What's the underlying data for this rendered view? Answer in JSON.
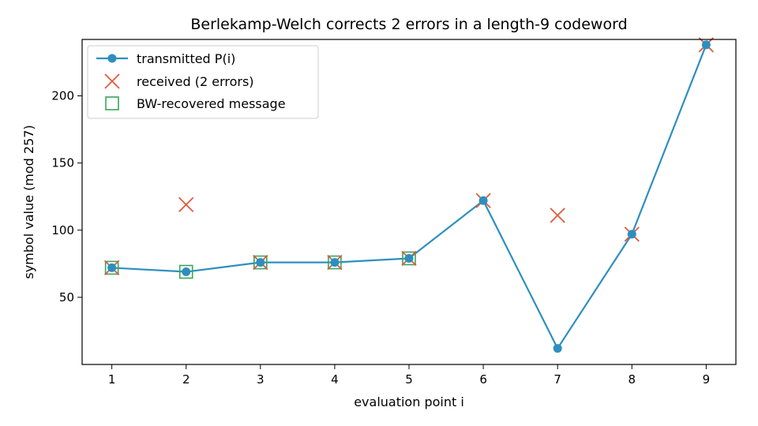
{
  "chart_data": {
    "type": "line",
    "title": "Berlekamp-Welch corrects 2 errors in a length-9 codeword",
    "xlabel": "evaluation point i",
    "ylabel": "symbol value (mod 257)",
    "xlim": [
      0.6,
      9.4
    ],
    "ylim": [
      0,
      242
    ],
    "xticks": [
      1,
      2,
      3,
      4,
      5,
      6,
      7,
      8,
      9
    ],
    "yticks": [
      50,
      100,
      150,
      200
    ],
    "grid": false,
    "legend_position": "top-left",
    "series": [
      {
        "name": "transmitted P(i)",
        "style": "line-with-circle-markers",
        "color": "#2e8fbf",
        "x": [
          1,
          2,
          3,
          4,
          5,
          6,
          7,
          8,
          9
        ],
        "y": [
          72,
          69,
          76,
          76,
          79,
          122,
          12,
          97,
          238
        ]
      },
      {
        "name": "received (2 errors)",
        "style": "x-markers",
        "color": "#e05a3c",
        "x": [
          1,
          2,
          3,
          4,
          5,
          6,
          7,
          8,
          9
        ],
        "y": [
          72,
          119,
          76,
          76,
          79,
          122,
          111,
          97,
          238
        ]
      },
      {
        "name": "BW-recovered message",
        "style": "hollow-square-markers",
        "color": "#3aa55a",
        "x": [
          1,
          2,
          3,
          4,
          5
        ],
        "y": [
          72,
          69,
          76,
          76,
          79
        ]
      }
    ]
  }
}
